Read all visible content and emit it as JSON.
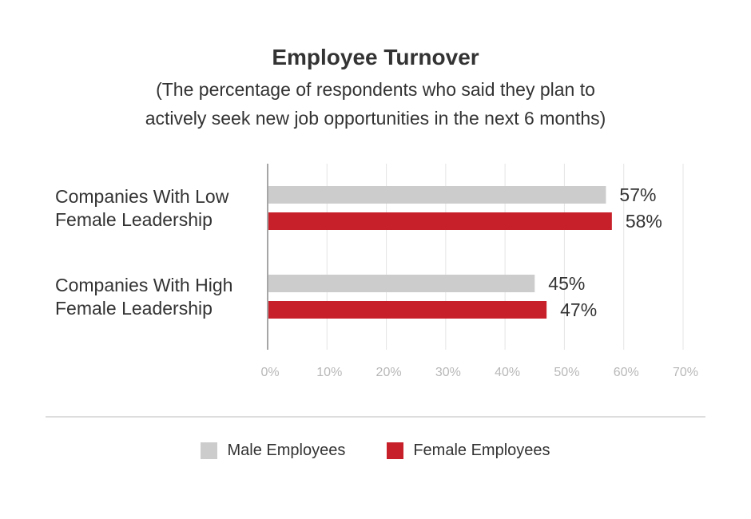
{
  "chart_data": {
    "type": "bar",
    "orientation": "horizontal",
    "title": "Employee Turnover",
    "subtitle_lines": [
      "(The percentage of respondents who said they plan to",
      "actively seek new job opportunities in the next 6 months)"
    ],
    "categories": [
      [
        "Companies With Low",
        "Female Leadership"
      ],
      [
        "Companies With High",
        "Female Leadership"
      ]
    ],
    "series": [
      {
        "name": "Male Employees",
        "color": "#cccccc",
        "values": [
          57,
          45
        ],
        "labels": [
          "57%",
          "45%"
        ]
      },
      {
        "name": "Female Employees",
        "color": "#c8202a",
        "values": [
          58,
          47
        ],
        "labels": [
          "58%",
          "47%"
        ]
      }
    ],
    "xlim": [
      0,
      70
    ],
    "xticks": [
      0,
      10,
      20,
      30,
      40,
      50,
      60,
      70
    ],
    "xtick_labels": [
      "0%",
      "10%",
      "20%",
      "30%",
      "40%",
      "50%",
      "60%",
      "70%"
    ],
    "grid": true,
    "legend_position": "bottom-center"
  },
  "colors": {
    "grid": "#e4e4e4",
    "axis": "#888888"
  }
}
